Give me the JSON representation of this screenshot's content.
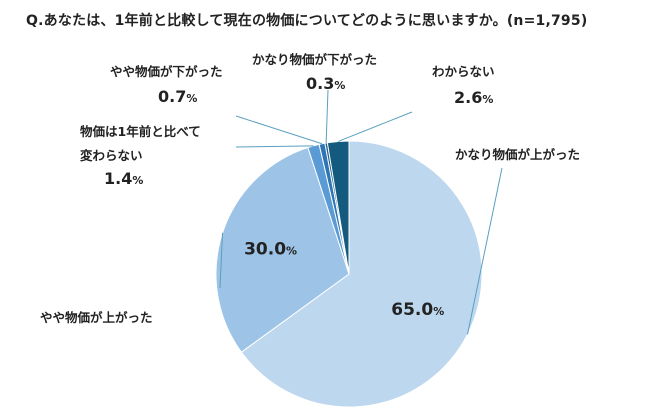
{
  "title": "Q.あなたは、1年前と比較して現在の物価についてどのように思いますか。(n=1,795)",
  "chart_data": {
    "type": "pie",
    "title": "Q.あなたは、1年前と比較して現在の物価についてどのように思いますか。(n=1,795)",
    "unit": "%",
    "start": "12 o'clock",
    "direction": "clockwise",
    "slices": [
      {
        "label": "かなり物価が上がった",
        "label_lines": [
          "かなり物価が上がった"
        ],
        "value": 65.0,
        "value_text": "65.0",
        "color": "#bdd7ee"
      },
      {
        "label": "やや物価が上がった",
        "label_lines": [
          "やや物価が上がった"
        ],
        "value": 30.0,
        "value_text": "30.0",
        "color": "#9dc3e6"
      },
      {
        "label": "物価は1年前と比べて変わらない",
        "label_lines": [
          "物価は1年前と比べて",
          "変わらない"
        ],
        "value": 1.4,
        "value_text": "1.4",
        "color": "#5b9bd5"
      },
      {
        "label": "やや物価が下がった",
        "label_lines": [
          "やや物価が下がった"
        ],
        "value": 0.7,
        "value_text": "0.7",
        "color": "#2e75b6"
      },
      {
        "label": "かなり物価が下がった",
        "label_lines": [
          "かなり物価が下がった"
        ],
        "value": 0.3,
        "value_text": "0.3",
        "color": "#1f5f8b"
      },
      {
        "label": "わからない",
        "label_lines": [
          "わからない"
        ],
        "value": 2.6,
        "value_text": "2.6",
        "color": "#145a7e"
      }
    ]
  }
}
